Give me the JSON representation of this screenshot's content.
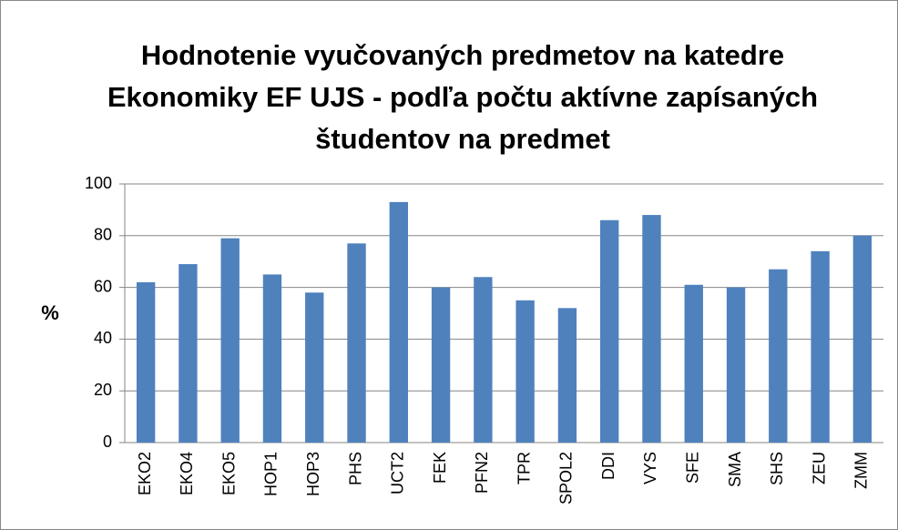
{
  "chart_data": {
    "type": "bar",
    "title": "Hodnotenie vyučovaných predmetov na katedre Ekonomiky EF UJS - podľa počtu aktívne zapísaných študentov na predmet",
    "y_label": "%",
    "categories": [
      "EKO2",
      "EKO4",
      "EKO5",
      "HOP1",
      "HOP3",
      "PHS",
      "UCT2",
      "FEK",
      "PFN2",
      "TPR",
      "SPOL2",
      "DDI",
      "VYS",
      "SFE",
      "SMA",
      "SHS",
      "ZEU",
      "ZMM"
    ],
    "values": [
      62,
      69,
      79,
      65,
      58,
      77,
      93,
      60,
      64,
      55,
      52,
      86,
      88,
      61,
      60,
      67,
      74,
      80
    ],
    "color": "#4f81bd",
    "ylim": [
      0,
      100
    ],
    "yticks": [
      0,
      20,
      40,
      60,
      80,
      100
    ],
    "grid": true
  }
}
